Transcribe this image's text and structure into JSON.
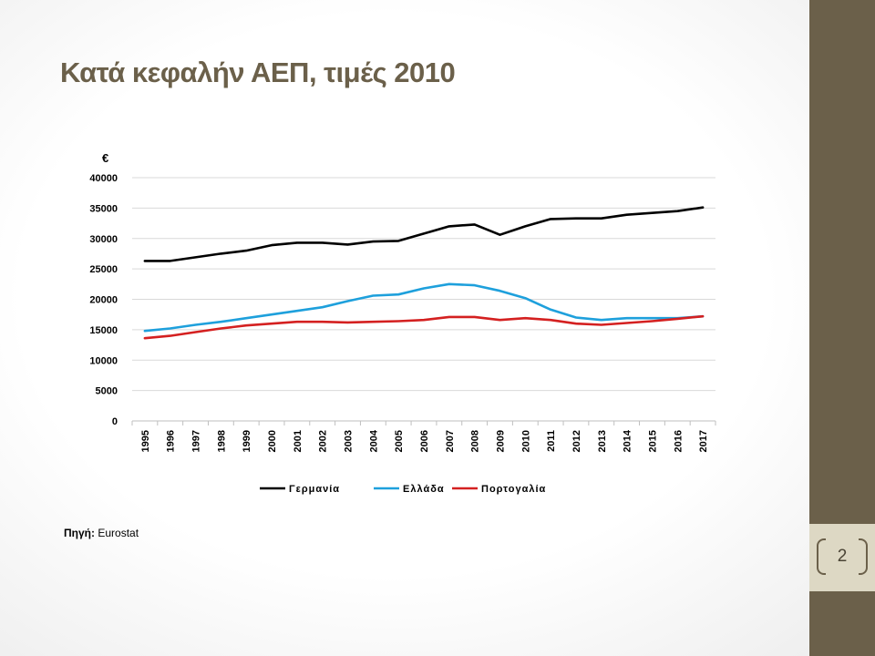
{
  "slide": {
    "title": "Κατά κεφαλήν ΑΕΠ, τιμές 2010",
    "page_number": "2",
    "source_label": "Πηγή:",
    "source_value": "Eurostat"
  },
  "colors": {
    "sidebar": "#6b604a",
    "title": "#6b604a"
  },
  "chart_data": {
    "type": "line",
    "ylabel": "€",
    "xlabel": "",
    "ylim": [
      0,
      40000
    ],
    "yticks": [
      0,
      5000,
      10000,
      15000,
      20000,
      25000,
      30000,
      35000,
      40000
    ],
    "grid": true,
    "legend_position": "bottom",
    "x": [
      "1995",
      "1996",
      "1997",
      "1998",
      "1999",
      "2000",
      "2001",
      "2002",
      "2003",
      "2004",
      "2005",
      "2006",
      "2007",
      "2008",
      "2009",
      "2010",
      "2011",
      "2012",
      "2013",
      "2014",
      "2015",
      "2016",
      "2017"
    ],
    "series": [
      {
        "name": "Γερμανία",
        "color": "#000000",
        "values": [
          26300,
          26300,
          26900,
          27500,
          28000,
          28900,
          29300,
          29300,
          29000,
          29500,
          29600,
          30800,
          32000,
          32300,
          30600,
          32000,
          33200,
          33300,
          33300,
          33900,
          34200,
          34500,
          35100
        ]
      },
      {
        "name": "Ελλάδα",
        "color": "#1ea0dc",
        "values": [
          14800,
          15200,
          15800,
          16300,
          16900,
          17500,
          18100,
          18700,
          19700,
          20600,
          20800,
          21800,
          22500,
          22300,
          21400,
          20200,
          18300,
          17000,
          16600,
          16900,
          16900,
          16900,
          17200
        ]
      },
      {
        "name": "Πορτογαλία",
        "color": "#d42020",
        "values": [
          13600,
          14000,
          14600,
          15200,
          15700,
          16000,
          16300,
          16300,
          16200,
          16300,
          16400,
          16600,
          17100,
          17100,
          16600,
          16900,
          16600,
          16000,
          15800,
          16100,
          16400,
          16800,
          17200
        ]
      }
    ]
  }
}
